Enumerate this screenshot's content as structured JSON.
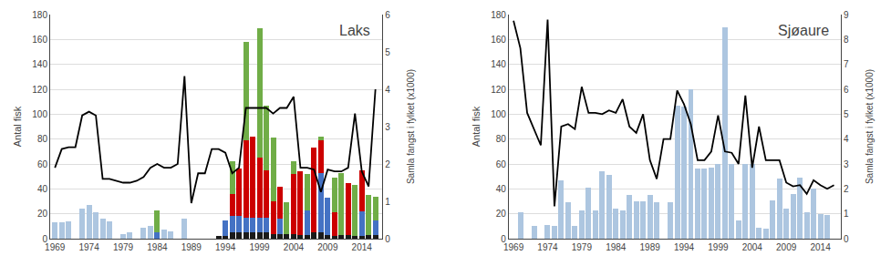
{
  "chart_data": [
    {
      "type": "bar",
      "title": "Laks",
      "ylabel": "Antal fisk",
      "y2label": "Samla fangst i fylket (x1000)",
      "stacked": true,
      "grid": true,
      "x": [
        1969,
        1970,
        1971,
        1972,
        1973,
        1974,
        1975,
        1976,
        1977,
        1978,
        1979,
        1980,
        1981,
        1982,
        1983,
        1984,
        1985,
        1986,
        1987,
        1988,
        1989,
        1990,
        1991,
        1992,
        1993,
        1994,
        1995,
        1996,
        1997,
        1998,
        1999,
        2000,
        2001,
        2002,
        2003,
        2004,
        2005,
        2006,
        2007,
        2008,
        2009,
        2010,
        2011,
        2012,
        2013,
        2014,
        2015,
        2016
      ],
      "xlim": [
        1968.3,
        2017
      ],
      "xticks": [
        1969,
        1974,
        1979,
        1984,
        1989,
        1994,
        1999,
        2004,
        2009,
        2014
      ],
      "ylim": [
        0,
        180
      ],
      "yticks": [
        0,
        20,
        40,
        60,
        80,
        100,
        120,
        140,
        160,
        180
      ],
      "y2lim": [
        0,
        6
      ],
      "y2ticks": [
        0,
        1,
        2,
        3,
        4,
        5,
        6
      ],
      "series": [
        {
          "color": "#adc6e0",
          "values": [
            13,
            13,
            14,
            0,
            24,
            27,
            21,
            16,
            14,
            0,
            4,
            5,
            0,
            9,
            10,
            0,
            7,
            6,
            0,
            16,
            0,
            0,
            0,
            0,
            0,
            0,
            0,
            0,
            0,
            0,
            0,
            0,
            0,
            0,
            0,
            0,
            0,
            0,
            0,
            0,
            0,
            0,
            0,
            0,
            0,
            0,
            0,
            0
          ]
        },
        {
          "color": "#1a1a1a",
          "values": [
            0,
            0,
            0,
            0,
            0,
            0,
            0,
            0,
            0,
            0,
            0,
            0,
            0,
            0,
            0,
            0,
            0,
            0,
            0,
            0,
            0,
            0,
            0,
            0,
            2,
            2,
            5,
            5,
            5,
            5,
            5,
            5,
            4,
            4,
            4,
            4,
            3,
            3,
            5,
            5,
            3,
            2,
            3,
            3,
            2,
            2,
            3,
            3
          ]
        },
        {
          "color": "#4472c4",
          "values": [
            0,
            0,
            0,
            0,
            0,
            0,
            0,
            0,
            0,
            0,
            0,
            0,
            0,
            0,
            0,
            5,
            0,
            0,
            0,
            0,
            0,
            0,
            0,
            0,
            0,
            13,
            13,
            13,
            12,
            12,
            12,
            12,
            0,
            12,
            0,
            0,
            0,
            20,
            0,
            48,
            30,
            0,
            0,
            0,
            0,
            20,
            0,
            12
          ]
        },
        {
          "color": "#cc0000",
          "values": [
            0,
            0,
            0,
            0,
            0,
            0,
            0,
            0,
            0,
            0,
            0,
            0,
            0,
            0,
            0,
            0,
            0,
            0,
            0,
            0,
            0,
            0,
            0,
            0,
            0,
            0,
            18,
            38,
            62,
            65,
            48,
            38,
            26,
            26,
            0,
            48,
            51,
            0,
            68,
            26,
            0,
            19,
            0,
            42,
            0,
            33,
            0,
            0
          ]
        },
        {
          "color": "#70ad47",
          "values": [
            0,
            0,
            0,
            0,
            0,
            0,
            0,
            0,
            0,
            0,
            0,
            0,
            0,
            0,
            0,
            18,
            0,
            0,
            0,
            0,
            0,
            0,
            0,
            0,
            0,
            0,
            26,
            0,
            79,
            0,
            104,
            52,
            51,
            0,
            25,
            10,
            0,
            29,
            0,
            3,
            0,
            28,
            50,
            0,
            41,
            0,
            32,
            19
          ]
        },
        {
          "type": "line",
          "axis": "y2",
          "color": "#000000",
          "values": [
            1.9,
            2.4,
            2.45,
            2.45,
            3.3,
            3.4,
            3.3,
            1.6,
            1.6,
            1.55,
            1.5,
            1.5,
            1.55,
            1.65,
            1.9,
            2,
            1.9,
            1.9,
            2,
            4.35,
            0.95,
            1.75,
            1.75,
            2.4,
            2.4,
            2.3,
            1.75,
            1.9,
            3.5,
            3.5,
            3.5,
            3.5,
            3.35,
            3.5,
            3.5,
            3.8,
            1.9,
            1.9,
            1.85,
            1.25,
            1.85,
            1.8,
            1.8,
            1.9,
            3.35,
            1.8,
            1.4,
            4
          ]
        }
      ]
    },
    {
      "type": "bar",
      "title": "Sjøaure",
      "ylabel": "Antal fisk",
      "y2label": "Samla fangst i fylket (x1000)",
      "grid": true,
      "x": [
        1969,
        1970,
        1971,
        1972,
        1973,
        1974,
        1975,
        1976,
        1977,
        1978,
        1979,
        1980,
        1981,
        1982,
        1983,
        1984,
        1985,
        1986,
        1987,
        1988,
        1989,
        1990,
        1991,
        1992,
        1993,
        1994,
        1995,
        1996,
        1997,
        1998,
        1999,
        2000,
        2001,
        2002,
        2003,
        2004,
        2005,
        2006,
        2007,
        2008,
        2009,
        2010,
        2011,
        2012,
        2013,
        2014,
        2015,
        2016
      ],
      "xlim": [
        1968.3,
        2017
      ],
      "xticks": [
        1969,
        1974,
        1979,
        1984,
        1989,
        1994,
        1999,
        2004,
        2009,
        2014
      ],
      "ylim": [
        0,
        180
      ],
      "yticks": [
        0,
        20,
        40,
        60,
        80,
        100,
        120,
        140,
        160,
        180
      ],
      "y2lim": [
        0,
        9
      ],
      "y2ticks": [
        0,
        1,
        2,
        3,
        4,
        5,
        6,
        7,
        8,
        9
      ],
      "series": [
        {
          "color": "#adc6e0",
          "values": [
            0,
            21,
            0,
            10,
            0,
            11,
            10,
            47,
            29,
            10,
            23,
            41,
            23,
            54,
            51,
            24,
            23,
            35,
            30,
            30,
            35,
            29,
            0,
            29,
            107,
            106,
            120,
            56,
            56,
            57,
            60,
            170,
            60,
            15,
            60,
            60,
            9,
            8,
            31,
            48,
            24,
            36,
            49,
            21,
            40,
            20,
            19,
            0
          ]
        },
        {
          "type": "line",
          "axis": "y2",
          "color": "#000000",
          "values": [
            8.75,
            7.65,
            5.05,
            4.4,
            3.75,
            8.8,
            1.3,
            4.5,
            4.6,
            4.4,
            6.1,
            5.05,
            5.05,
            5,
            5.15,
            5.05,
            5.6,
            4.5,
            4.25,
            5,
            3.15,
            2.4,
            4,
            4,
            5.95,
            5.4,
            4.6,
            3.15,
            3.15,
            3.5,
            4.95,
            3.5,
            3.45,
            3,
            5.75,
            2.85,
            4.5,
            3.15,
            3.15,
            3.15,
            2.25,
            2.1,
            2.15,
            1.8,
            2.35,
            2.15,
            2,
            2.15
          ]
        }
      ]
    }
  ]
}
